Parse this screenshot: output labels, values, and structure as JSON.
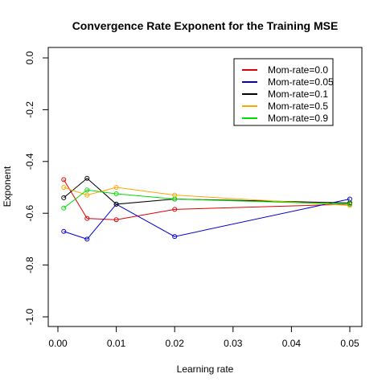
{
  "chart_data": {
    "type": "line",
    "title": "Convergence Rate Exponent for the Training MSE",
    "xlabel": "Learning rate",
    "ylabel": "Exponent",
    "xlim": [
      0.0,
      0.05
    ],
    "ylim": [
      -1.0,
      0.0
    ],
    "xticks": [
      "0.00",
      "0.01",
      "0.02",
      "0.03",
      "0.04",
      "0.05"
    ],
    "yticks": [
      "0.0",
      "-0.2",
      "-0.4",
      "-0.6",
      "-0.8",
      "-1.0"
    ],
    "grid": false,
    "legend_position": "top-right",
    "x": [
      0.001,
      0.005,
      0.01,
      0.02,
      0.05
    ],
    "series": [
      {
        "name": "Mom-rate=0.0",
        "color": "#dd0000",
        "values": [
          -0.47,
          -0.62,
          -0.625,
          -0.585,
          -0.565
        ]
      },
      {
        "name": "Mom-rate=0.05",
        "color": "#0000cc",
        "values": [
          -0.67,
          -0.7,
          -0.565,
          -0.69,
          -0.545
        ]
      },
      {
        "name": "Mom-rate=0.1",
        "color": "#000000",
        "values": [
          -0.54,
          -0.465,
          -0.565,
          -0.545,
          -0.56
        ]
      },
      {
        "name": "Mom-rate=0.5",
        "color": "#ffa500",
        "values": [
          -0.5,
          -0.53,
          -0.5,
          -0.53,
          -0.57
        ]
      },
      {
        "name": "Mom-rate=0.9",
        "color": "#00dd00",
        "values": [
          -0.58,
          -0.51,
          -0.525,
          -0.545,
          -0.565
        ]
      }
    ]
  }
}
